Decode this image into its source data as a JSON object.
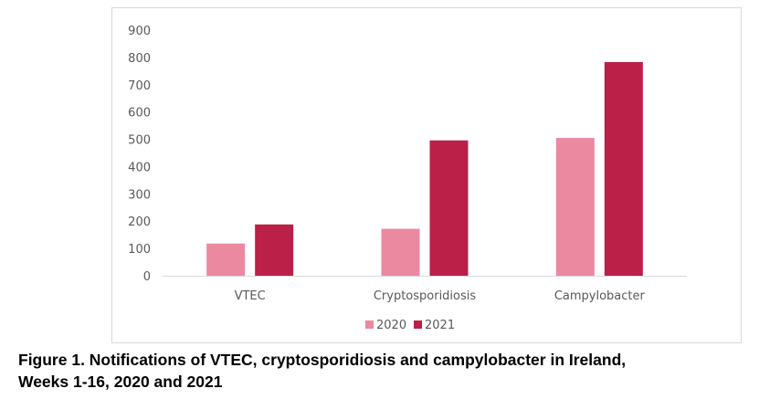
{
  "chart_data": {
    "type": "bar",
    "title": "",
    "xlabel": "",
    "ylabel": "",
    "categories": [
      "VTEC",
      "Cryptosporidiosis",
      "Campylobacter"
    ],
    "series": [
      {
        "name": "2020",
        "color": "#eb89a1",
        "values": [
          118,
          172,
          505
        ]
      },
      {
        "name": "2021",
        "color": "#bb2049",
        "values": [
          188,
          496,
          783
        ]
      }
    ],
    "ylim": [
      0,
      900
    ],
    "yticks": [
      0,
      100,
      200,
      300,
      400,
      500,
      600,
      700,
      800,
      900
    ],
    "grid": false,
    "legend": "bottom-center"
  },
  "caption": {
    "line1": "Figure 1. Notifications of VTEC, cryptosporidiosis and campylobacter in Ireland,",
    "line2": "Weeks 1-16, 2020 and 2021"
  }
}
